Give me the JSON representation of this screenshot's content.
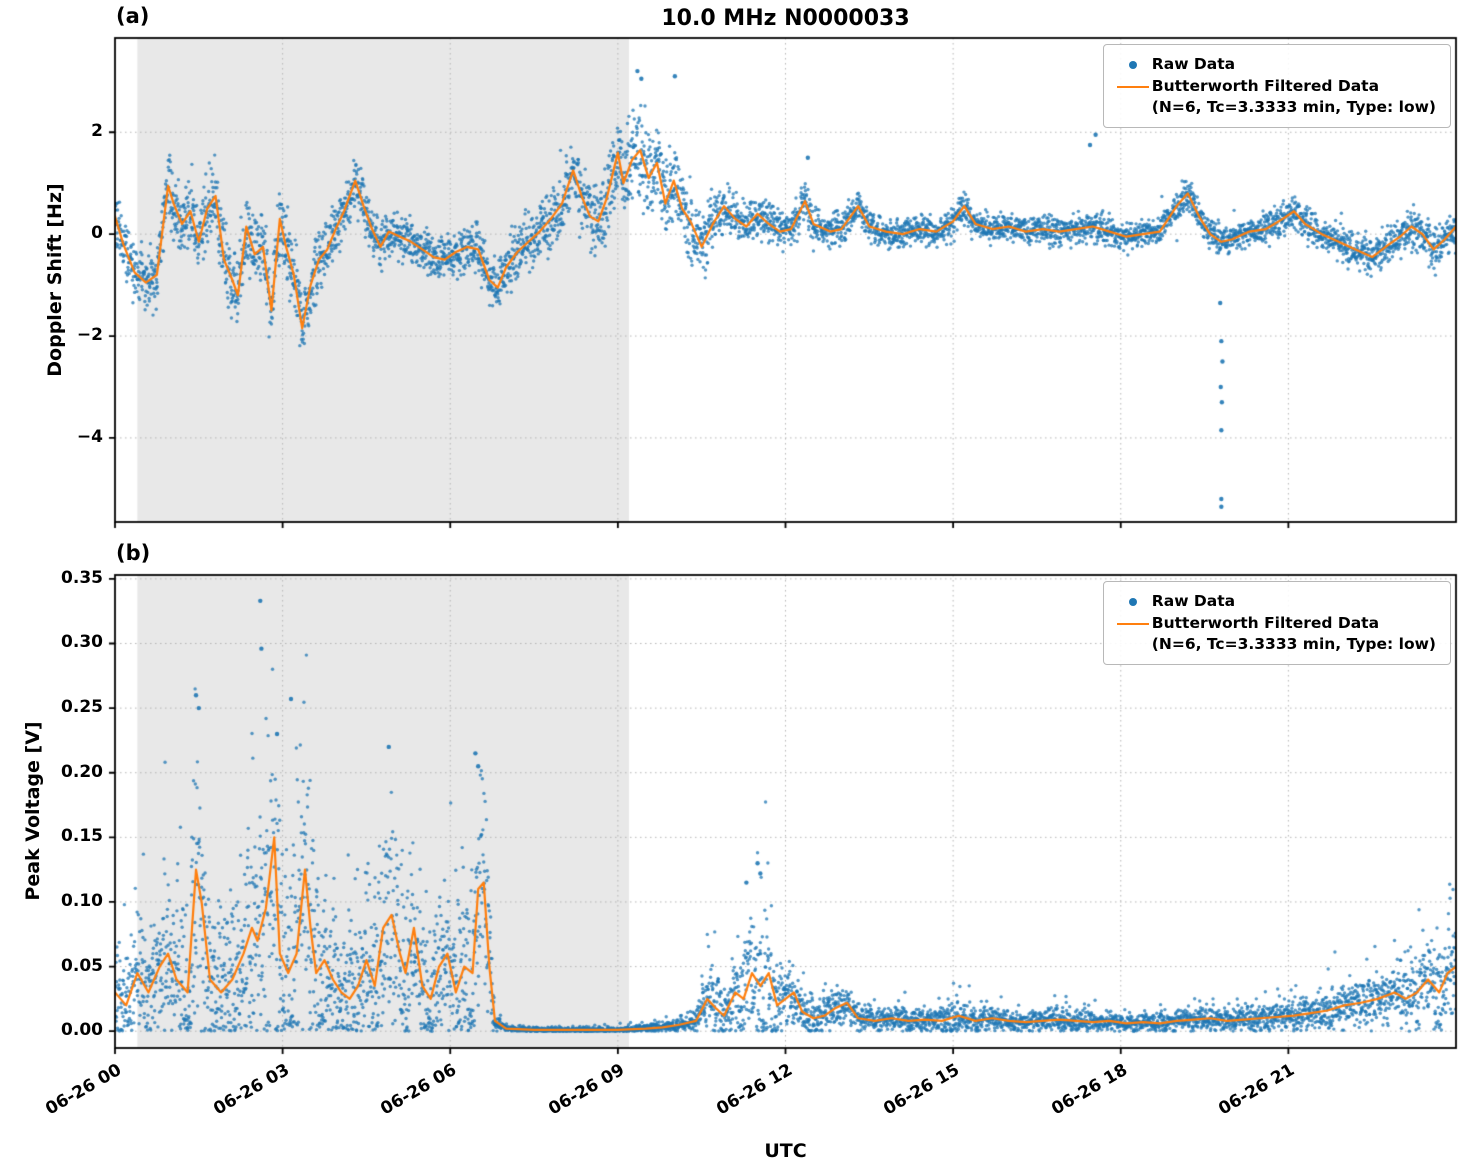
{
  "figure": {
    "title": "10.0 MHz N0000033",
    "xlabel": "UTC",
    "panel_a_label": "(a)",
    "panel_b_label": "(b)",
    "legend": {
      "raw_label": "Raw Data",
      "filtered_label": "Butterworth Filtered Data",
      "filtered_sublabel": "(N=6, Tc=3.3333 min, Type: low)"
    },
    "colors": {
      "raw": "#1f77b4",
      "filtered": "#ff7f0e",
      "shade": "#e8e8e8",
      "grid": "#b5b5b5",
      "axis": "#000000"
    }
  },
  "chart_data": [
    {
      "type": "scatter",
      "panel": "(a)",
      "title": "10.0 MHz N0000033",
      "ylabel": "Doppler Shift [Hz]",
      "xlabel": "UTC",
      "x_range_hours": [
        0,
        24
      ],
      "x_date": "06-26",
      "ylim": [
        -5.65,
        3.85
      ],
      "yticks": [
        2,
        0,
        -2,
        -4
      ],
      "ytick_labels": [
        "2",
        "0",
        "−2",
        "−4"
      ],
      "xtick_hours": [
        0,
        3,
        6,
        9,
        12,
        15,
        18,
        21
      ],
      "xtick_labels": [
        "06-26 00",
        "06-26 03",
        "06-26 06",
        "06-26 09",
        "06-26 12",
        "06-26 15",
        "06-26 18",
        "06-26 21"
      ],
      "show_x_tick_labels": false,
      "grid": true,
      "legend_position": "upper right",
      "shaded_region_hours": [
        0.4,
        9.2
      ],
      "series": [
        {
          "name": "Raw Data",
          "style": "scatter_band",
          "description": "Dense ~10 s cadence raw Doppler samples scattered around the filtered curve; spread given by scatter_spread amplitude.",
          "n_points": 5200
        },
        {
          "name": "Butterworth Filtered Data (N=6, Tc=3.3333 min, Type: low)",
          "style": "line",
          "x": [
            0,
            0.15,
            0.35,
            0.55,
            0.75,
            0.95,
            1.05,
            1.2,
            1.35,
            1.5,
            1.65,
            1.8,
            1.95,
            2.1,
            2.2,
            2.35,
            2.5,
            2.65,
            2.8,
            2.95,
            3.05,
            3.2,
            3.35,
            3.5,
            3.65,
            3.8,
            3.95,
            4.1,
            4.3,
            4.45,
            4.6,
            4.75,
            4.9,
            5.1,
            5.3,
            5.5,
            5.7,
            5.9,
            6.1,
            6.3,
            6.5,
            6.7,
            6.85,
            7.0,
            7.2,
            7.4,
            7.6,
            7.8,
            8.0,
            8.2,
            8.35,
            8.5,
            8.65,
            8.8,
            9.0,
            9.1,
            9.25,
            9.4,
            9.55,
            9.7,
            9.85,
            10.0,
            10.15,
            10.3,
            10.5,
            10.7,
            10.9,
            11.1,
            11.3,
            11.5,
            11.7,
            11.9,
            12.1,
            12.35,
            12.5,
            12.8,
            13.0,
            13.3,
            13.5,
            13.8,
            14.1,
            14.4,
            14.7,
            15.0,
            15.2,
            15.4,
            15.7,
            16.0,
            16.3,
            16.6,
            16.9,
            17.2,
            17.5,
            17.8,
            18.1,
            18.4,
            18.7,
            19.0,
            19.2,
            19.4,
            19.6,
            19.8,
            20.0,
            20.3,
            20.6,
            20.9,
            21.1,
            21.3,
            21.6,
            21.9,
            22.2,
            22.5,
            22.8,
            23.0,
            23.2,
            23.4,
            23.6,
            23.8,
            24.0
          ],
          "y": [
            0.35,
            -0.2,
            -0.75,
            -0.95,
            -0.8,
            0.95,
            0.6,
            0.2,
            0.45,
            -0.15,
            0.5,
            0.75,
            -0.5,
            -0.9,
            -1.2,
            0.15,
            -0.4,
            -0.25,
            -1.5,
            0.3,
            -0.2,
            -0.8,
            -1.85,
            -1.0,
            -0.5,
            -0.3,
            0.1,
            0.45,
            1.05,
            0.55,
            0.1,
            -0.25,
            0.05,
            -0.05,
            -0.15,
            -0.3,
            -0.45,
            -0.5,
            -0.35,
            -0.25,
            -0.3,
            -0.9,
            -1.05,
            -0.65,
            -0.35,
            -0.15,
            0.05,
            0.3,
            0.6,
            1.25,
            0.75,
            0.35,
            0.25,
            0.7,
            1.6,
            1.0,
            1.45,
            1.65,
            1.1,
            1.4,
            0.6,
            1.05,
            0.5,
            0.25,
            -0.25,
            0.2,
            0.55,
            0.3,
            0.15,
            0.4,
            0.2,
            0.05,
            0.1,
            0.65,
            0.2,
            0.05,
            0.1,
            0.55,
            0.15,
            0.05,
            0.0,
            0.1,
            0.05,
            0.25,
            0.55,
            0.2,
            0.1,
            0.15,
            0.05,
            0.1,
            0.05,
            0.1,
            0.15,
            0.05,
            -0.05,
            0.0,
            0.05,
            0.55,
            0.8,
            0.35,
            0.0,
            -0.15,
            -0.1,
            0.05,
            0.1,
            0.3,
            0.45,
            0.2,
            0.0,
            -0.15,
            -0.3,
            -0.45,
            -0.2,
            -0.05,
            0.15,
            0.0,
            -0.3,
            -0.1,
            0.15
          ]
        }
      ],
      "scatter_spread": {
        "x": [
          0,
          1,
          2,
          2.5,
          3,
          3.5,
          4,
          4.5,
          5,
          5.5,
          6,
          6.5,
          7,
          7.5,
          8,
          8.5,
          9,
          9.5,
          10,
          10.5,
          11,
          11.5,
          12,
          12.5,
          13,
          13.5,
          14,
          14.5,
          15,
          15.5,
          16,
          16.5,
          17,
          17.5,
          18,
          18.5,
          19,
          19.5,
          20,
          20.5,
          21,
          21.5,
          22,
          22.5,
          23,
          23.5,
          24
        ],
        "amplitude": [
          0.5,
          0.55,
          0.6,
          0.65,
          0.7,
          0.6,
          0.5,
          0.45,
          0.4,
          0.38,
          0.38,
          0.42,
          0.45,
          0.5,
          0.55,
          0.6,
          0.75,
          0.85,
          0.7,
          0.55,
          0.4,
          0.35,
          0.3,
          0.35,
          0.3,
          0.28,
          0.25,
          0.25,
          0.3,
          0.28,
          0.25,
          0.24,
          0.24,
          0.26,
          0.22,
          0.22,
          0.28,
          0.26,
          0.24,
          0.26,
          0.3,
          0.28,
          0.3,
          0.32,
          0.34,
          0.36,
          0.32
        ]
      },
      "outliers": {
        "x": [
          17.45,
          17.55,
          19.78,
          19.8,
          19.82,
          19.79,
          19.81,
          19.8,
          19.8,
          19.8,
          9.35,
          9.42,
          10.02,
          12.4
        ],
        "y": [
          1.75,
          1.95,
          -1.35,
          -2.1,
          -2.5,
          -3.0,
          -3.3,
          -3.85,
          -5.2,
          -5.35,
          3.2,
          3.05,
          3.1,
          1.5
        ]
      }
    },
    {
      "type": "scatter",
      "panel": "(b)",
      "ylabel": "Peak Voltage [V]",
      "xlabel": "UTC",
      "x_range_hours": [
        0,
        24
      ],
      "x_date": "06-26",
      "ylim": [
        -0.013,
        0.353
      ],
      "yticks": [
        0.35,
        0.3,
        0.25,
        0.2,
        0.15,
        0.1,
        0.05,
        0.0
      ],
      "ytick_labels": [
        "0.35",
        "0.30",
        "0.25",
        "0.20",
        "0.15",
        "0.10",
        "0.05",
        "0.00"
      ],
      "xtick_hours": [
        0,
        3,
        6,
        9,
        12,
        15,
        18,
        21
      ],
      "xtick_labels": [
        "06-26 00",
        "06-26 03",
        "06-26 06",
        "06-26 09",
        "06-26 12",
        "06-26 15",
        "06-26 18",
        "06-26 21"
      ],
      "show_x_tick_labels": true,
      "grid": true,
      "legend_position": "upper right",
      "shaded_region_hours": [
        0.4,
        9.2
      ],
      "series": [
        {
          "name": "Raw Data",
          "style": "scatter_band",
          "description": "Dense raw peak-voltage samples; spiky 0-0.33 V before ~06:45, near zero 06:45-10:00, burst to ~0.13 V near 11:30, low ~0.01 V after, rising to ~0.11 V near end of day.",
          "n_points": 5200
        },
        {
          "name": "Butterworth Filtered Data (N=6, Tc=3.3333 min, Type: low)",
          "style": "line",
          "x": [
            0,
            0.2,
            0.4,
            0.6,
            0.8,
            0.95,
            1.1,
            1.3,
            1.45,
            1.55,
            1.7,
            1.9,
            2.1,
            2.3,
            2.45,
            2.55,
            2.7,
            2.85,
            2.95,
            3.1,
            3.25,
            3.4,
            3.5,
            3.6,
            3.75,
            3.9,
            4.05,
            4.2,
            4.35,
            4.5,
            4.65,
            4.8,
            4.95,
            5.1,
            5.2,
            5.35,
            5.5,
            5.65,
            5.8,
            5.95,
            6.1,
            6.25,
            6.4,
            6.5,
            6.6,
            6.7,
            6.8,
            7.0,
            7.5,
            8.0,
            8.5,
            9.0,
            9.5,
            9.8,
            10.1,
            10.4,
            10.6,
            10.75,
            10.9,
            11.1,
            11.25,
            11.4,
            11.55,
            11.7,
            11.85,
            12.0,
            12.15,
            12.3,
            12.5,
            12.7,
            12.9,
            13.1,
            13.3,
            13.6,
            13.9,
            14.2,
            14.5,
            14.8,
            15.1,
            15.4,
            15.7,
            16.0,
            16.3,
            16.6,
            16.9,
            17.2,
            17.5,
            17.8,
            18.1,
            18.4,
            18.7,
            19.0,
            19.3,
            19.6,
            19.9,
            20.2,
            20.5,
            20.8,
            21.1,
            21.4,
            21.7,
            22.0,
            22.3,
            22.6,
            22.9,
            23.1,
            23.3,
            23.5,
            23.7,
            23.85,
            24.0
          ],
          "y": [
            0.03,
            0.02,
            0.045,
            0.03,
            0.05,
            0.06,
            0.04,
            0.03,
            0.125,
            0.1,
            0.04,
            0.03,
            0.04,
            0.06,
            0.08,
            0.07,
            0.095,
            0.15,
            0.06,
            0.045,
            0.06,
            0.125,
            0.08,
            0.045,
            0.055,
            0.04,
            0.03,
            0.025,
            0.035,
            0.055,
            0.035,
            0.08,
            0.09,
            0.06,
            0.045,
            0.08,
            0.035,
            0.025,
            0.05,
            0.06,
            0.03,
            0.05,
            0.045,
            0.11,
            0.115,
            0.05,
            0.008,
            0.002,
            0.001,
            0.001,
            0.001,
            0.001,
            0.002,
            0.003,
            0.005,
            0.008,
            0.025,
            0.018,
            0.012,
            0.03,
            0.025,
            0.045,
            0.035,
            0.045,
            0.02,
            0.025,
            0.03,
            0.015,
            0.01,
            0.012,
            0.018,
            0.022,
            0.01,
            0.008,
            0.01,
            0.008,
            0.009,
            0.008,
            0.012,
            0.008,
            0.01,
            0.008,
            0.007,
            0.008,
            0.009,
            0.008,
            0.007,
            0.008,
            0.006,
            0.007,
            0.006,
            0.008,
            0.009,
            0.01,
            0.008,
            0.009,
            0.01,
            0.011,
            0.012,
            0.014,
            0.016,
            0.02,
            0.022,
            0.025,
            0.03,
            0.025,
            0.03,
            0.04,
            0.03,
            0.045,
            0.05
          ]
        }
      ],
      "scatter_spread": {
        "x": [
          0,
          0.5,
          1,
          1.45,
          1.8,
          2.2,
          2.6,
          2.85,
          3.1,
          3.4,
          3.8,
          4.2,
          4.6,
          4.9,
          5.2,
          5.5,
          5.8,
          6.1,
          6.5,
          6.7,
          6.8,
          7,
          8,
          9,
          9.5,
          10,
          10.4,
          10.7,
          11,
          11.3,
          11.5,
          11.7,
          11.9,
          12.1,
          12.4,
          12.7,
          13,
          13.3,
          13.7,
          14,
          14.5,
          15,
          15.5,
          16,
          16.5,
          17,
          17.5,
          18,
          18.5,
          19,
          19.5,
          20,
          20.5,
          21,
          21.5,
          22,
          22.5,
          23,
          23.4,
          23.7,
          24
        ],
        "amplitude": [
          0.035,
          0.04,
          0.05,
          0.09,
          0.05,
          0.06,
          0.09,
          0.13,
          0.08,
          0.1,
          0.06,
          0.05,
          0.06,
          0.08,
          0.06,
          0.05,
          0.06,
          0.05,
          0.08,
          0.06,
          0.006,
          0.002,
          0.002,
          0.002,
          0.003,
          0.004,
          0.008,
          0.025,
          0.02,
          0.045,
          0.06,
          0.055,
          0.025,
          0.02,
          0.015,
          0.012,
          0.015,
          0.01,
          0.008,
          0.008,
          0.008,
          0.012,
          0.008,
          0.007,
          0.007,
          0.008,
          0.007,
          0.006,
          0.006,
          0.007,
          0.008,
          0.008,
          0.009,
          0.01,
          0.012,
          0.015,
          0.018,
          0.022,
          0.028,
          0.035,
          0.04
        ]
      },
      "outliers": {
        "x": [
          2.6,
          2.62,
          1.45,
          1.5,
          3.15,
          2.9,
          4.9,
          6.45,
          6.5,
          11.5,
          11.55,
          11.3
        ],
        "y": [
          0.333,
          0.296,
          0.26,
          0.25,
          0.257,
          0.23,
          0.22,
          0.215,
          0.205,
          0.13,
          0.122,
          0.115
        ]
      }
    }
  ]
}
